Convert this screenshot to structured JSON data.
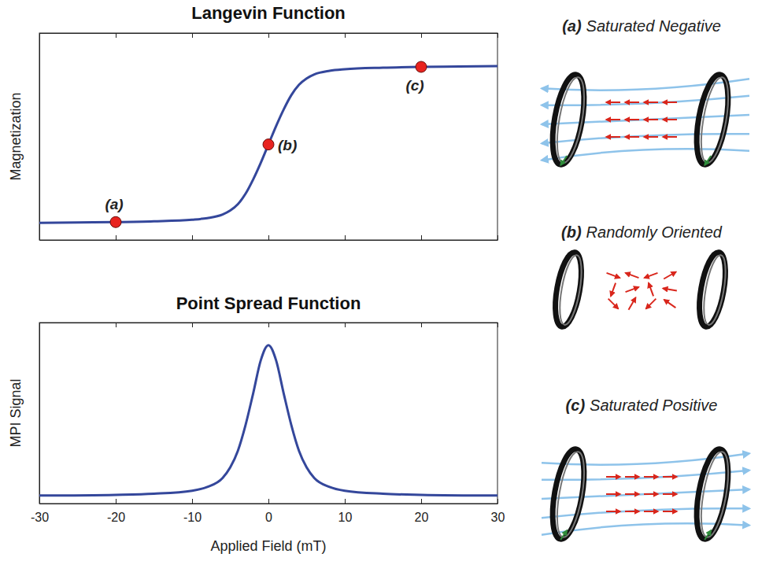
{
  "chart_data": [
    {
      "type": "line",
      "title": "Langevin Function",
      "y_label": "Magnetization",
      "xlim": [
        -30,
        30
      ],
      "xticks": [
        -30,
        -20,
        -10,
        0,
        10,
        20,
        30
      ],
      "ylim": [
        -1.2,
        1.4
      ],
      "tick_labels": false,
      "grid": false,
      "series": [
        {
          "type": "line",
          "color": "#34479b",
          "line_style": "solid",
          "x": [
            -30,
            -25,
            -20,
            -15,
            -10,
            -8,
            -6,
            -5,
            -4,
            -3,
            -2,
            -1,
            0,
            1,
            2,
            3,
            4,
            5,
            6,
            8,
            10,
            15,
            20,
            25,
            30
          ],
          "values": [
            -0.985,
            -0.98,
            -0.975,
            -0.965,
            -0.945,
            -0.925,
            -0.88,
            -0.83,
            -0.75,
            -0.62,
            -0.44,
            -0.23,
            0,
            0.23,
            0.44,
            0.62,
            0.75,
            0.83,
            0.88,
            0.925,
            0.945,
            0.965,
            0.975,
            0.98,
            0.985
          ]
        },
        {
          "type": "scatter",
          "color": "#e8231f",
          "marker": "circle",
          "x": [
            -20,
            0,
            20
          ],
          "values": [
            -0.975,
            0,
            0.975
          ]
        }
      ],
      "annotations": [
        {
          "text": "(a)",
          "x": -20,
          "y": -0.975,
          "position": "above"
        },
        {
          "text": "(b)",
          "x": 0,
          "y": 0,
          "position": "right"
        },
        {
          "text": "(c)",
          "x": 20,
          "y": 0.975,
          "position": "below"
        }
      ]
    },
    {
      "type": "line",
      "title": "Point Spread Function",
      "x_label": "Applied Field (mT)",
      "y_label": "MPI Signal",
      "xlim": [
        -30,
        30
      ],
      "xticks": [
        -30,
        -20,
        -10,
        0,
        10,
        20,
        30
      ],
      "ylim": [
        -0.05,
        1.15
      ],
      "tick_labels": "x",
      "grid": false,
      "series": [
        {
          "type": "line",
          "color": "#34479b",
          "line_style": "solid",
          "x": [
            -30,
            -20,
            -15,
            -10,
            -8,
            -6,
            -5,
            -4,
            -3,
            -2,
            -1,
            0,
            1,
            2,
            3,
            4,
            5,
            6,
            8,
            10,
            15,
            20,
            30
          ],
          "values": [
            0.003,
            0.008,
            0.015,
            0.035,
            0.06,
            0.12,
            0.19,
            0.3,
            0.47,
            0.68,
            0.9,
            1,
            0.9,
            0.68,
            0.47,
            0.3,
            0.19,
            0.12,
            0.06,
            0.035,
            0.015,
            0.008,
            0.003
          ]
        }
      ]
    }
  ],
  "illustrations": [
    {
      "letter": "(a)",
      "label": "Saturated Negative",
      "direction": "negative"
    },
    {
      "letter": "(b)",
      "label": "Randomly Oriented",
      "direction": "random"
    },
    {
      "letter": "(c)",
      "label": "Saturated Positive",
      "direction": "positive"
    }
  ]
}
